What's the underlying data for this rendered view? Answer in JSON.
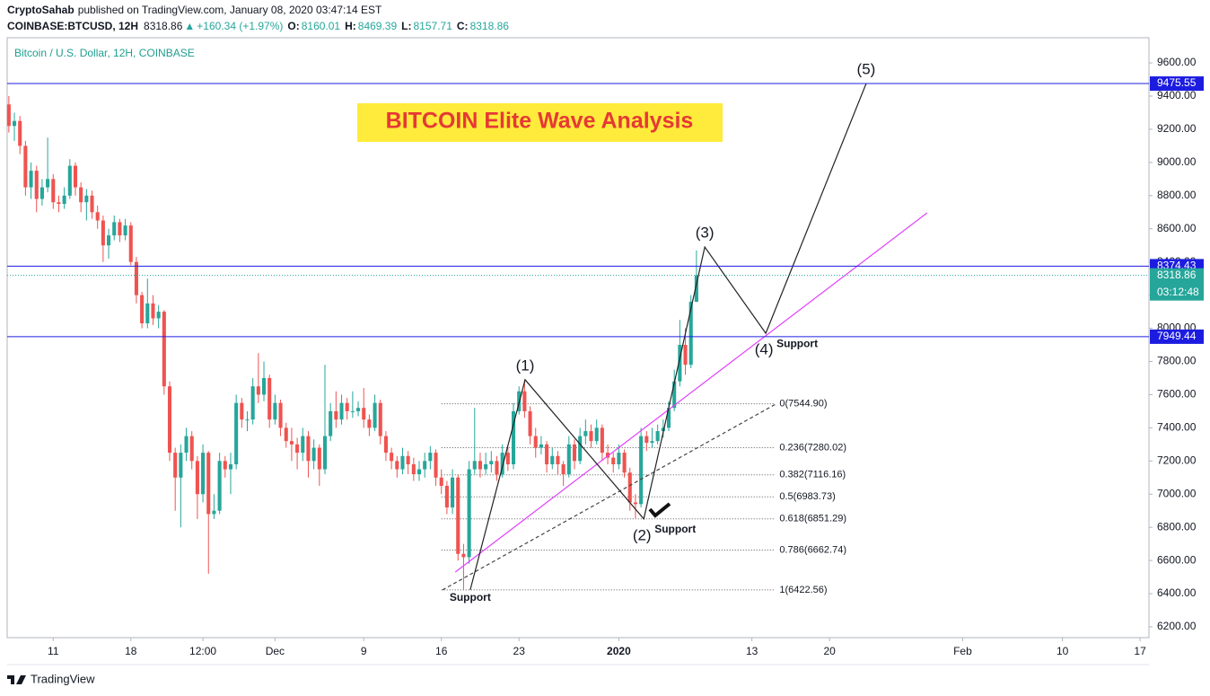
{
  "header": {
    "author": "CryptoSahab",
    "published": "published on TradingView.com, January 08, 2020 03:47:14 EST",
    "symbol": "COINBASE:BTCUSD, 12H",
    "quote": [
      "8318.86",
      "▲",
      "+160.34 (+1.97%)",
      "O:",
      "8160.01",
      "H:",
      "8469.39",
      "L:",
      "8157.71",
      "C:",
      "8318.86"
    ]
  },
  "branding": "TradingView",
  "chart_data": {
    "type": "candlestick",
    "title": "BITCOIN Elite Wave Analysis",
    "legend": "Bitcoin / U.S. Dollar, 12H, COINBASE",
    "up_color": "#26a69a",
    "down_color": "#ef5350",
    "open": [
      9350,
      9220,
      9250,
      9100,
      8850,
      8950,
      8780,
      8850,
      8900,
      8760,
      8750,
      8800,
      8980,
      8850,
      8760,
      8800,
      8700,
      8650,
      8500,
      8560,
      8640,
      8560,
      8620,
      8400,
      8200,
      8030,
      8150,
      8060,
      8100,
      7650,
      7250,
      7100,
      7250,
      7350,
      7200,
      7000,
      7250,
      6880,
      6900,
      7200,
      7150,
      7180,
      7550,
      7450,
      7450,
      7650,
      7600,
      7700,
      7450,
      7550,
      7400,
      7320,
      7300,
      7250,
      7350,
      7200,
      7280,
      7150,
      7350,
      7500,
      7450,
      7550,
      7500,
      7500,
      7520,
      7450,
      7400,
      7550,
      7350,
      7250,
      7200,
      7150,
      7230,
      7180,
      7120,
      7150,
      7200,
      7250,
      7100,
      7050,
      6920,
      7100,
      6640,
      6620,
      7150,
      7200,
      7150,
      7180,
      7200,
      7120,
      7250,
      7180,
      7500,
      7620,
      7500,
      7350,
      7280,
      7300,
      7180,
      7230,
      7180,
      7120,
      7300,
      7200,
      7350,
      7380,
      7320,
      7400,
      7250,
      7220,
      7180,
      7250,
      7130,
      6950,
      6940,
      7350,
      7310,
      7320,
      7380,
      7400,
      7520,
      7680,
      7900,
      7780,
      8160.01
    ],
    "high": [
      9400,
      9300,
      9280,
      9130,
      9000,
      8980,
      8900,
      9150,
      8930,
      8800,
      8850,
      9020,
      9000,
      8880,
      8840,
      8830,
      8740,
      8680,
      8600,
      8680,
      8660,
      8660,
      8640,
      8430,
      8220,
      8300,
      8200,
      8140,
      8110,
      7680,
      7280,
      7300,
      7400,
      7380,
      7230,
      7300,
      7260,
      7000,
      7250,
      7230,
      7250,
      7600,
      7580,
      7500,
      7700,
      7850,
      7800,
      7720,
      7600,
      7570,
      7430,
      7400,
      7340,
      7400,
      7380,
      7330,
      7300,
      7780,
      7550,
      7620,
      7600,
      7580,
      7620,
      7560,
      7640,
      7480,
      7600,
      7570,
      7380,
      7280,
      7230,
      7280,
      7260,
      7220,
      7200,
      7250,
      7290,
      7270,
      7150,
      7080,
      7150,
      7120,
      6700,
      7200,
      7520,
      7250,
      7250,
      7260,
      7230,
      7300,
      7280,
      7550,
      7650,
      7690,
      7530,
      7400,
      7350,
      7320,
      7280,
      7260,
      7200,
      7350,
      7330,
      7400,
      7450,
      7420,
      7450,
      7420,
      7300,
      7250,
      7300,
      7270,
      7160,
      7000,
      7400,
      7380,
      7400,
      7420,
      7450,
      7560,
      7750,
      8050,
      8000,
      8200,
      8469.39
    ],
    "low": [
      9180,
      9130,
      9050,
      8800,
      8780,
      8700,
      8740,
      8820,
      8720,
      8700,
      8720,
      8780,
      8800,
      8700,
      8650,
      8660,
      8600,
      8400,
      8420,
      8530,
      8520,
      8530,
      8380,
      8150,
      8000,
      8000,
      8020,
      8000,
      7600,
      7200,
      6900,
      6800,
      7200,
      7150,
      6850,
      6950,
      6520,
      6850,
      6880,
      7100,
      7000,
      7150,
      7400,
      7380,
      7420,
      7550,
      7560,
      7400,
      7420,
      7350,
      7280,
      7200,
      7150,
      7200,
      7100,
      7150,
      7050,
      7120,
      7320,
      7400,
      7420,
      7450,
      7460,
      7470,
      7400,
      7350,
      7380,
      7300,
      7200,
      7150,
      7100,
      7120,
      7120,
      7080,
      7080,
      7100,
      7150,
      7050,
      7000,
      6880,
      6880,
      6600,
      6425,
      6580,
      7120,
      7100,
      7120,
      7130,
      7080,
      7100,
      7140,
      7150,
      7480,
      7460,
      7300,
      7220,
      7240,
      7130,
      7150,
      7120,
      7050,
      7100,
      7150,
      7180,
      7300,
      7280,
      7300,
      7200,
      7180,
      7130,
      7150,
      7100,
      6900,
      6855,
      6920,
      7260,
      7280,
      7300,
      7340,
      7380,
      7500,
      7650,
      7720,
      7760,
      8157.71
    ],
    "close": [
      9220,
      9250,
      9100,
      8850,
      8950,
      8780,
      8850,
      8900,
      8760,
      8750,
      8800,
      8980,
      8850,
      8760,
      8800,
      8700,
      8650,
      8500,
      8560,
      8640,
      8560,
      8620,
      8400,
      8200,
      8030,
      8150,
      8060,
      8100,
      7650,
      7250,
      7100,
      7250,
      7350,
      7200,
      7000,
      7250,
      6880,
      6900,
      7200,
      7150,
      7180,
      7550,
      7450,
      7450,
      7650,
      7600,
      7700,
      7450,
      7550,
      7400,
      7320,
      7300,
      7250,
      7350,
      7200,
      7280,
      7150,
      7350,
      7500,
      7450,
      7550,
      7500,
      7500,
      7520,
      7450,
      7400,
      7550,
      7350,
      7250,
      7200,
      7150,
      7230,
      7180,
      7120,
      7150,
      7200,
      7250,
      7100,
      7050,
      6920,
      7100,
      6640,
      6620,
      7150,
      7200,
      7150,
      7180,
      7200,
      7120,
      7250,
      7180,
      7500,
      7620,
      7500,
      7350,
      7280,
      7300,
      7180,
      7230,
      7180,
      7120,
      7300,
      7200,
      7350,
      7380,
      7320,
      7400,
      7250,
      7220,
      7180,
      7250,
      7130,
      6950,
      6940,
      7350,
      7310,
      7320,
      7380,
      7400,
      7520,
      7680,
      7900,
      7780,
      8160.01,
      8318.86
    ],
    "countdown": "03:12:48",
    "xlim": [
      -0.3,
      205.6
    ],
    "xticks": [
      {
        "value": 8,
        "label": "11"
      },
      {
        "value": 22,
        "label": "18"
      },
      {
        "value": 35,
        "label": "12:00"
      },
      {
        "value": 48,
        "label": "Dec"
      },
      {
        "value": 64,
        "label": "9"
      },
      {
        "value": 78,
        "label": "16"
      },
      {
        "value": 92,
        "label": "23"
      },
      {
        "value": 110,
        "label": "2020"
      },
      {
        "value": 134,
        "label": "13"
      },
      {
        "value": 148,
        "label": "20"
      },
      {
        "value": 172,
        "label": "Feb"
      },
      {
        "value": 190,
        "label": "10"
      },
      {
        "value": 204,
        "label": "17"
      }
    ],
    "ylim": [
      6135,
      9752
    ],
    "yticks": [
      {
        "value": 6200,
        "label": "6200.00"
      },
      {
        "value": 6400,
        "label": "6400.00"
      },
      {
        "value": 6600,
        "label": "6600.00"
      },
      {
        "value": 6800,
        "label": "6800.00"
      },
      {
        "value": 7000,
        "label": "7000.00"
      },
      {
        "value": 7200,
        "label": "7200.00"
      },
      {
        "value": 7400,
        "label": "7400.00"
      },
      {
        "value": 7600,
        "label": "7600.00"
      },
      {
        "value": 7800,
        "label": "7800.00"
      },
      {
        "value": 8000,
        "label": "8000.00"
      },
      {
        "value": 8200,
        "label": "8200.00"
      },
      {
        "value": 8400,
        "label": "8400.00"
      },
      {
        "value": 8600,
        "label": "8600.00"
      },
      {
        "value": 8800,
        "label": "8800.00"
      },
      {
        "value": 9000,
        "label": "9000.00"
      },
      {
        "value": 9200,
        "label": "9200.00"
      },
      {
        "value": 9400,
        "label": "9400.00"
      },
      {
        "value": 9600,
        "label": "9600.00"
      }
    ],
    "levels": [
      9475.55,
      8374.43,
      7949.44
    ],
    "level_color": "#1c1ce0",
    "fib_range": [
      78,
      138
    ],
    "fib_levels": [
      {
        "value": 7544.9,
        "label": "0(7544.90)"
      },
      {
        "value": 7280.02,
        "label": "0.236(7280.02)"
      },
      {
        "value": 7116.16,
        "label": "0.382(7116.16)"
      },
      {
        "value": 6983.73,
        "label": "0.5(6983.73)"
      },
      {
        "value": 6851.29,
        "label": "0.618(6851.29)"
      },
      {
        "value": 6662.74,
        "label": "0.786(6662.74)"
      },
      {
        "value": 6422.56,
        "label": "1(6422.56)"
      }
    ],
    "waves": {
      "labels": [
        null,
        "(1)",
        "(2)",
        "(3)",
        "(4)",
        "(5)"
      ],
      "x": [
        83.2,
        93.1,
        114.5,
        125.5,
        136.5,
        154.6
      ],
      "y": [
        6422.56,
        7690,
        6851,
        8490,
        7970,
        9475.55
      ]
    },
    "annotations": [
      {
        "text": "Support",
        "point": 0
      },
      {
        "text": "Support",
        "point": 2
      },
      {
        "text": "Support",
        "point": 4
      }
    ],
    "trendlines": [
      {
        "x": [
          80.5,
          165.6
        ],
        "y": [
          6530,
          8696
        ],
        "color": "#e040fb",
        "style": "solid"
      },
      {
        "x": [
          78.2,
          138.4
        ],
        "y": [
          6422.56,
          7544.9
        ],
        "color": "#444444",
        "style": "dashed"
      }
    ]
  }
}
